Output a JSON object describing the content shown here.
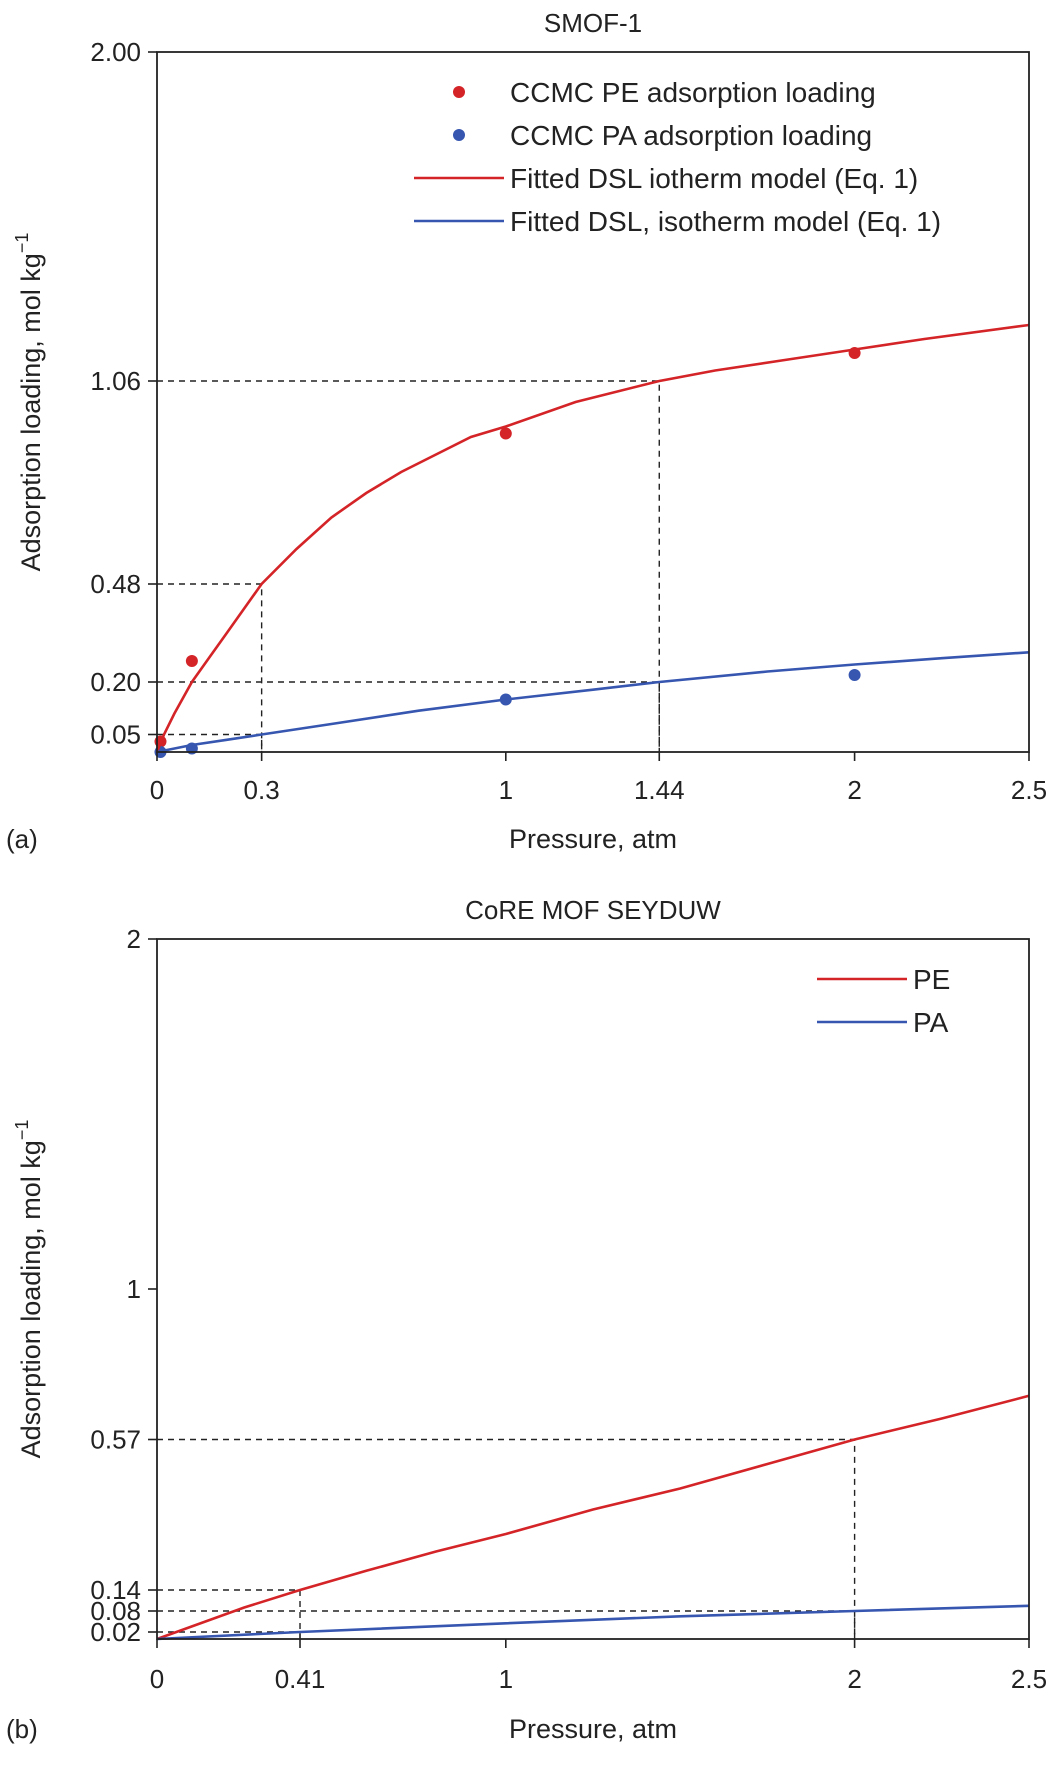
{
  "chart_data": [
    {
      "panel": "(a)",
      "type": "line",
      "title": "SMOF-1",
      "xlabel": "Pressure, atm",
      "ylabel": "Adsorption loading, mol kg",
      "ylabel_sup": "−1",
      "xlim": [
        0,
        2.5
      ],
      "ylim": [
        0,
        2.0
      ],
      "xticks": [
        0,
        0.3,
        1,
        1.44,
        2,
        2.5
      ],
      "xtick_labels": [
        "0",
        "0.3",
        "1",
        "1.44",
        "2",
        "2.5"
      ],
      "yticks": [
        0.05,
        0.2,
        0.48,
        1.06,
        2.0
      ],
      "ytick_labels": [
        "0.05",
        "0.20",
        "0.48",
        "1.06",
        "2.00"
      ],
      "grid": false,
      "legend_position": "top-right",
      "series": [
        {
          "name": "CCMC PE adsorption loading",
          "kind": "scatter",
          "color": "#d42428",
          "x": [
            0.01,
            0.1,
            1.0,
            2.0
          ],
          "y": [
            0.03,
            0.26,
            0.91,
            1.14
          ]
        },
        {
          "name": "CCMC PA adsorption loading",
          "kind": "scatter",
          "color": "#3656b0",
          "x": [
            0.01,
            0.1,
            1.0,
            2.0
          ],
          "y": [
            0.0,
            0.01,
            0.15,
            0.22
          ]
        },
        {
          "name": "Fitted DSL iotherm model (Eq. 1)",
          "kind": "line",
          "color": "#d42428",
          "x": [
            0,
            0.02,
            0.05,
            0.1,
            0.15,
            0.2,
            0.3,
            0.4,
            0.5,
            0.6,
            0.7,
            0.8,
            0.9,
            1.0,
            1.2,
            1.44,
            1.6,
            1.8,
            2.0,
            2.2,
            2.5
          ],
          "y": [
            0.0,
            0.05,
            0.11,
            0.2,
            0.27,
            0.34,
            0.48,
            0.58,
            0.67,
            0.74,
            0.8,
            0.85,
            0.9,
            0.93,
            1.0,
            1.06,
            1.09,
            1.12,
            1.15,
            1.18,
            1.22
          ]
        },
        {
          "name": "Fitted DSL, isotherm model (Eq. 1)",
          "kind": "line",
          "color": "#3656b0",
          "x": [
            0,
            0.1,
            0.2,
            0.3,
            0.5,
            0.75,
            1.0,
            1.25,
            1.44,
            1.75,
            2.0,
            2.25,
            2.5
          ],
          "y": [
            0.0,
            0.02,
            0.035,
            0.05,
            0.08,
            0.118,
            0.15,
            0.178,
            0.2,
            0.23,
            0.25,
            0.268,
            0.285
          ]
        }
      ],
      "guides": [
        {
          "x": 0.3,
          "y": 0.48
        },
        {
          "x": 1.44,
          "y": 1.06
        },
        {
          "x": 1.44,
          "y": 0.2
        },
        {
          "x": 0.3,
          "y": 0.05
        }
      ]
    },
    {
      "panel": "(b)",
      "type": "line",
      "title": "CoRE MOF SEYDUW",
      "xlabel": "Pressure, atm",
      "ylabel": "Adsorption loading, mol kg",
      "ylabel_sup": "−1",
      "xlim": [
        0,
        2.5
      ],
      "ylim": [
        0,
        2
      ],
      "xticks": [
        0,
        0.41,
        1,
        2,
        2.5
      ],
      "xtick_labels": [
        "0",
        "0.41",
        "1",
        "2",
        "2.5"
      ],
      "yticks": [
        0.02,
        0.08,
        0.14,
        0.57,
        1,
        2
      ],
      "ytick_labels": [
        "0.02",
        "0.08",
        "0.14",
        "0.57",
        "1",
        "2"
      ],
      "grid": false,
      "legend_position": "top-right",
      "series": [
        {
          "name": "PE",
          "kind": "line",
          "color": "#d42428",
          "x": [
            0,
            0.25,
            0.41,
            0.6,
            0.8,
            1.0,
            1.25,
            1.5,
            1.75,
            2.0,
            2.25,
            2.5
          ],
          "y": [
            0.0,
            0.09,
            0.14,
            0.195,
            0.25,
            0.3,
            0.37,
            0.43,
            0.5,
            0.57,
            0.63,
            0.695
          ]
        },
        {
          "name": "PA",
          "kind": "line",
          "color": "#3656b0",
          "x": [
            0,
            0.41,
            1.0,
            1.5,
            2.0,
            2.5
          ],
          "y": [
            0.0,
            0.02,
            0.045,
            0.065,
            0.08,
            0.095
          ]
        }
      ],
      "guides": [
        {
          "x": 0.41,
          "y": 0.14
        },
        {
          "x": 0.41,
          "y": 0.02
        },
        {
          "x": 2.0,
          "y": 0.57
        },
        {
          "x": 2.0,
          "y": 0.08
        }
      ]
    }
  ]
}
